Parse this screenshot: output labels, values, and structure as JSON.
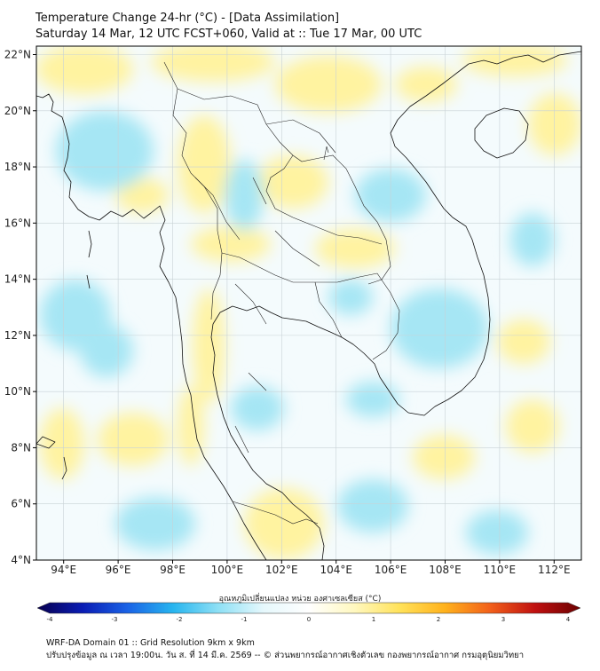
{
  "header": {
    "title": "Temperature Change 24-hr (°C) - [Data Assimilation]",
    "subtitle": "Saturday 14 Mar, 12 UTC FCST+060, Valid at :: Tue 17 Mar, 00 UTC"
  },
  "map": {
    "lon_range": [
      93,
      113
    ],
    "lat_range": [
      4,
      22.3
    ],
    "lat_ticks": [
      "22°N",
      "20°N",
      "18°N",
      "16°N",
      "14°N",
      "12°N",
      "10°N",
      "8°N",
      "6°N",
      "4°N"
    ],
    "lat_values": [
      22,
      20,
      18,
      16,
      14,
      12,
      10,
      8,
      6,
      4
    ],
    "lon_ticks": [
      "94°E",
      "96°E",
      "98°E",
      "100°E",
      "102°E",
      "104°E",
      "106°E",
      "108°E",
      "110°E",
      "112°E"
    ],
    "lon_values": [
      94,
      96,
      98,
      100,
      102,
      104,
      106,
      108,
      110,
      112
    ],
    "background_color": "#f4fbfd",
    "warm_anomaly_color": "#fff3a0",
    "cool_anomaly_color": "#a6e6f4"
  },
  "colorbar": {
    "label": "อุณหภูมิเปลี่ยนแปลง หน่วย องศาเซลเซียส (°C)",
    "ticks": [
      "-4",
      "-3",
      "-2",
      "-1",
      "0",
      "1",
      "2",
      "3",
      "4"
    ],
    "range": [
      -4,
      4
    ],
    "colors": [
      "#08004f",
      "#0a1cb4",
      "#1a63e6",
      "#27b5ef",
      "#8ee0f5",
      "#e6f8fc",
      "#ffffff",
      "#fff8c0",
      "#ffe25a",
      "#ffb21c",
      "#f2601a",
      "#c01010",
      "#6a0000"
    ]
  },
  "footer": {
    "line1": "WRF-DA Domain 01 :: Grid Resolution 9km x 9km",
    "line2": "ปรับปรุงข้อมูล ณ เวลา 19:00น. วัน ส. ที่ 14 มี.ค. 2569 -- © ส่วนพยากรณ์อากาศเชิงตัวเลข กองพยากรณ์อากาศ กรมอุตุนิยมวิทยา"
  }
}
